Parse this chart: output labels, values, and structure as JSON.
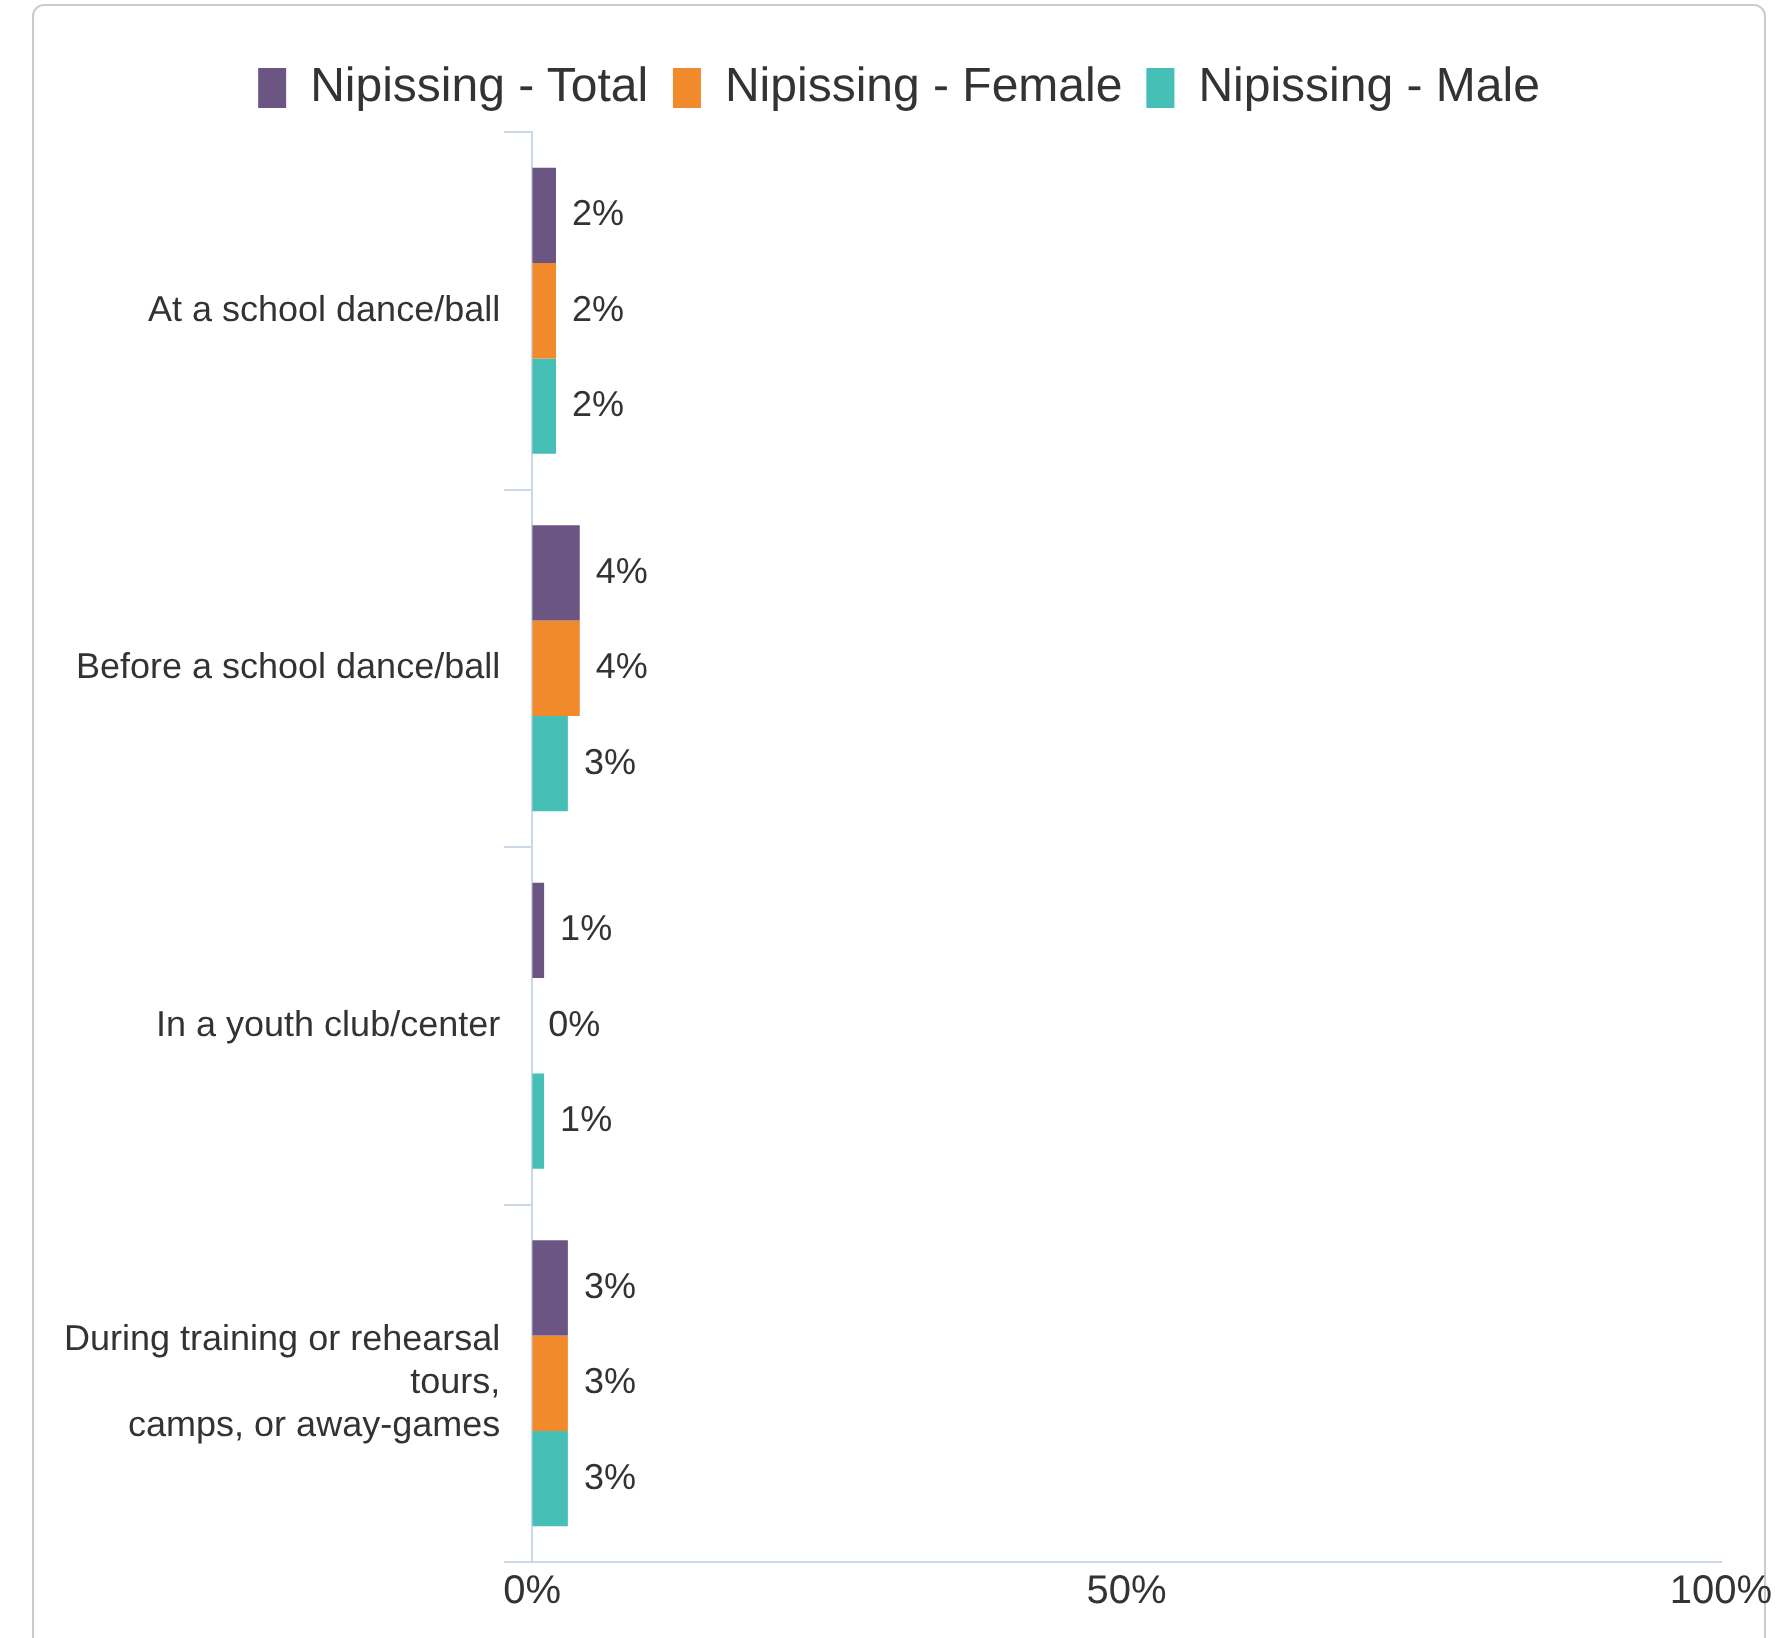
{
  "chart_data": {
    "type": "bar",
    "orientation": "horizontal",
    "legend": "top",
    "categories": [
      "At a school dance/ball",
      "Before a school dance/ball",
      "In a youth club/center",
      "During training or rehearsal\ntours,\ncamps, or away-games"
    ],
    "series": [
      {
        "name": "Nipissing - Total",
        "color": "#6b5582",
        "values": [
          2,
          4,
          1,
          3
        ],
        "value_labels": [
          "2%",
          "4%",
          "1%",
          "3%"
        ]
      },
      {
        "name": "Nipissing - Female",
        "color": "#f08a2a",
        "values": [
          2,
          4,
          0,
          3
        ],
        "value_labels": [
          "2%",
          "4%",
          "0%",
          "3%"
        ]
      },
      {
        "name": "Nipissing - Male",
        "color": "#46bfb7",
        "values": [
          2,
          3,
          1,
          3
        ],
        "value_labels": [
          "2%",
          "3%",
          "1%",
          "3%"
        ]
      }
    ],
    "xlim": [
      0,
      100
    ],
    "xticks": [
      {
        "value": 0,
        "label": "0%"
      },
      {
        "value": 50,
        "label": "50%"
      },
      {
        "value": 100,
        "label": "100%"
      }
    ],
    "grid": false
  }
}
